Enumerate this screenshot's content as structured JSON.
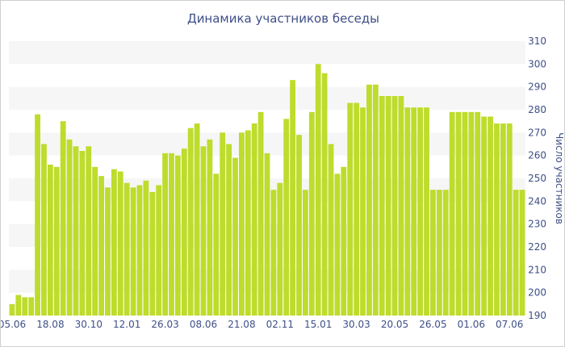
{
  "chart_data": {
    "type": "bar",
    "title": "Динамика участников беседы",
    "xlabel": "",
    "ylabel": "Число участников",
    "ylim": [
      190,
      310
    ],
    "yticks": [
      190,
      200,
      210,
      220,
      230,
      240,
      250,
      260,
      270,
      280,
      290,
      300,
      310
    ],
    "grid": "alternating horizontal bands",
    "bar_color": "#bddc2c",
    "x_tick_labels": [
      {
        "index": 0,
        "label": "05.06"
      },
      {
        "index": 6,
        "label": "18.08"
      },
      {
        "index": 12,
        "label": "30.10"
      },
      {
        "index": 18,
        "label": "12.01"
      },
      {
        "index": 24,
        "label": "26.03"
      },
      {
        "index": 30,
        "label": "08.06"
      },
      {
        "index": 36,
        "label": "21.08"
      },
      {
        "index": 42,
        "label": "02.11"
      },
      {
        "index": 48,
        "label": "15.01"
      },
      {
        "index": 54,
        "label": "30.03"
      },
      {
        "index": 60,
        "label": "20.05"
      },
      {
        "index": 66,
        "label": "26.05"
      },
      {
        "index": 72,
        "label": "01.06"
      },
      {
        "index": 78,
        "label": "07.06"
      }
    ],
    "values": [
      195,
      199,
      198,
      198,
      278,
      265,
      256,
      255,
      275,
      267,
      264,
      262,
      264,
      255,
      251,
      246,
      254,
      253,
      248,
      246,
      247,
      249,
      244,
      247,
      261,
      261,
      260,
      263,
      272,
      274,
      264,
      267,
      252,
      270,
      265,
      259,
      270,
      271,
      274,
      279,
      261,
      245,
      248,
      276,
      293,
      269,
      245,
      279,
      300,
      296,
      265,
      252,
      255,
      283,
      283,
      281,
      291,
      291,
      286,
      286,
      286,
      286,
      281,
      281,
      281,
      281,
      245,
      245,
      245,
      279,
      279,
      279,
      279,
      279,
      277,
      277,
      274,
      274,
      274,
      245,
      245
    ]
  }
}
